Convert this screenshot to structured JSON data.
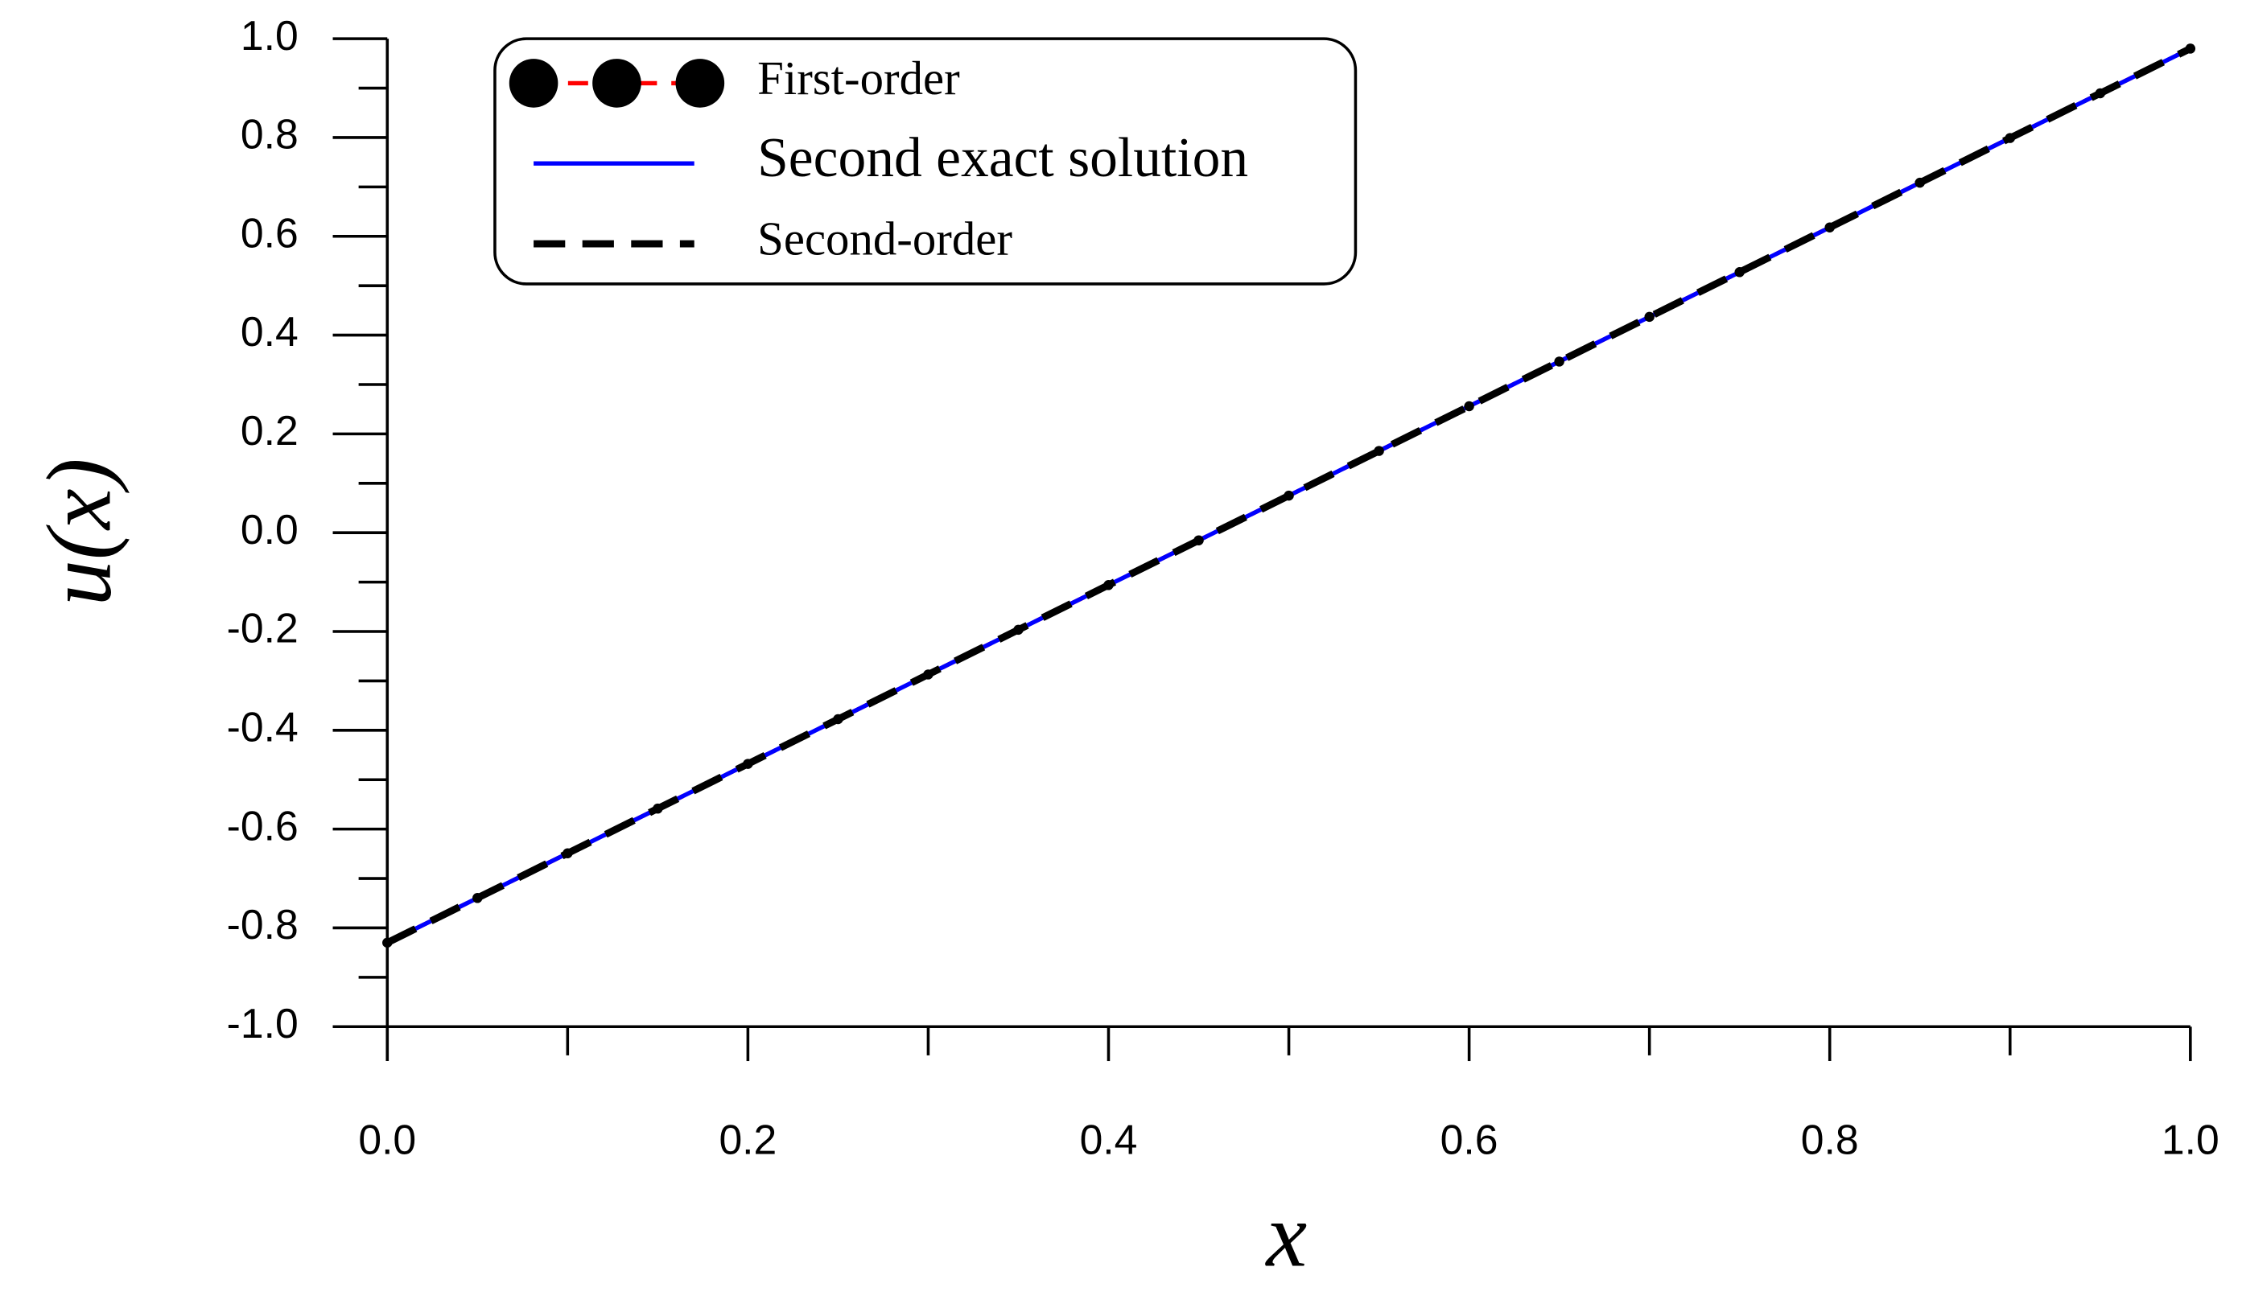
{
  "chart_data": {
    "type": "line",
    "x_label": "x",
    "y_label": "u(x)",
    "x": [
      0,
      0.05,
      0.1,
      0.15,
      0.2,
      0.25,
      0.3,
      0.35,
      0.4,
      0.45,
      0.5,
      0.55,
      0.6,
      0.65,
      0.7,
      0.75,
      0.8,
      0.85,
      0.9,
      0.95,
      1.0
    ],
    "series": [
      {
        "name": "First-order",
        "color": "#ff0000",
        "marker_color": "#000000",
        "linestyle": "dashed",
        "marker": true,
        "values": [
          -0.83,
          -0.7395,
          -0.649,
          -0.5585,
          -0.468,
          -0.3775,
          -0.287,
          -0.1965,
          -0.106,
          -0.0155,
          0.075,
          0.1655,
          0.256,
          0.3465,
          0.437,
          0.5275,
          0.618,
          0.7085,
          0.799,
          0.8895,
          0.98
        ]
      },
      {
        "name": "Second exact solution",
        "color": "#0000ff",
        "linestyle": "solid",
        "marker": false,
        "values": [
          -0.83,
          -0.7395,
          -0.649,
          -0.5585,
          -0.468,
          -0.3775,
          -0.287,
          -0.1965,
          -0.106,
          -0.0155,
          0.075,
          0.1655,
          0.256,
          0.3465,
          0.437,
          0.5275,
          0.618,
          0.7085,
          0.799,
          0.8895,
          0.98
        ]
      },
      {
        "name": "Second-order",
        "color": "#000000",
        "linestyle": "dashed",
        "marker": false,
        "values": [
          -0.83,
          -0.7395,
          -0.649,
          -0.5585,
          -0.468,
          -0.3775,
          -0.287,
          -0.1965,
          -0.106,
          -0.0155,
          0.075,
          0.1655,
          0.256,
          0.3465,
          0.437,
          0.5275,
          0.618,
          0.7085,
          0.799,
          0.8895,
          0.98
        ]
      }
    ],
    "xlim": [
      0,
      1.0
    ],
    "ylim": [
      -1.0,
      1.0
    ],
    "xticks": [
      {
        "value": 0,
        "label": "0.0"
      },
      0.2,
      0.4,
      0.6,
      0.8,
      {
        "value": 1,
        "label": "1.0"
      }
    ],
    "xminorticks": [
      0.1,
      0.3,
      0.5,
      0.7,
      0.9
    ],
    "yticks": [
      {
        "value": -1,
        "label": "-1.0"
      },
      -0.8,
      -0.6,
      -0.4,
      -0.2,
      {
        "value": 0,
        "label": "0.0"
      },
      0.2,
      0.4,
      0.6,
      0.8,
      {
        "value": 1,
        "label": "1.0"
      }
    ],
    "yminorticks": [
      -0.9,
      -0.7,
      -0.5,
      -0.3,
      -0.1,
      0.1,
      0.3,
      0.5,
      0.7,
      0.9
    ],
    "grid": false,
    "legend": "top-left"
  }
}
